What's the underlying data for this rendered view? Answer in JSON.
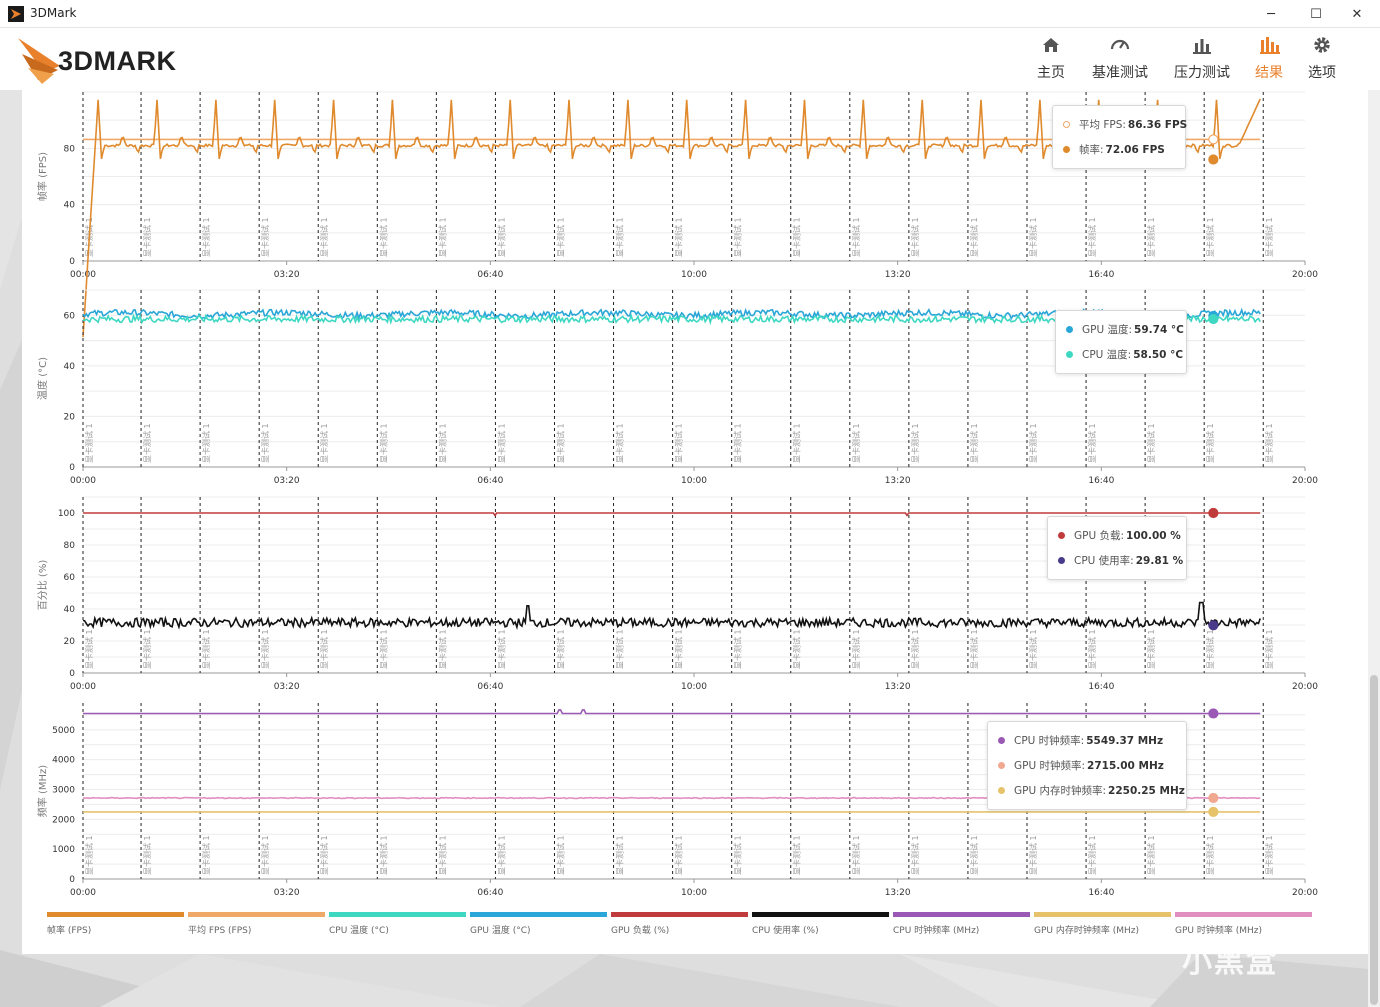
{
  "window": {
    "title": "3DMark",
    "minimize_glyph": "─",
    "maximize_glyph": "☐",
    "close_glyph": "✕"
  },
  "header": {
    "logo_text": "3DMARK",
    "nav": [
      {
        "label": "主页",
        "icon": "home-icon"
      },
      {
        "label": "基准测试",
        "icon": "speedometer-icon"
      },
      {
        "label": "压力测试",
        "icon": "bar-chart-icon"
      },
      {
        "label": "结果",
        "icon": "results-icon",
        "active": true
      },
      {
        "label": "选项",
        "icon": "gear-icon"
      }
    ],
    "accent_color": "#e8802c"
  },
  "x_axis_ticks": [
    "00:00",
    "03:20",
    "06:40",
    "10:00",
    "13:20",
    "16:40",
    "20:00"
  ],
  "marker_label": "显卡测试 1",
  "chart_data": [
    {
      "type": "line",
      "ylabel": "帧率 (FPS)",
      "yticks": [
        0,
        40,
        80
      ],
      "ylim": [
        0,
        120
      ],
      "xlim_seconds": [
        0,
        1200
      ],
      "series": [
        {
          "name": "平均 FPS",
          "color": "#f0a868",
          "pattern": "flat",
          "value": 86.36
        },
        {
          "name": "帧率",
          "color": "#e08a2e",
          "pattern": "spiky_periodic",
          "base": 82,
          "low": 72,
          "high": 116,
          "end_value": 115
        }
      ],
      "tooltip": [
        {
          "label": "平均 FPS:",
          "value": "86.36 FPS",
          "color": "#f0a868",
          "hollow": true
        },
        {
          "label": "帧率:",
          "value": "72.06 FPS",
          "color": "#e08a2e",
          "hollow": false
        }
      ]
    },
    {
      "type": "line",
      "ylabel": "温度 (°C)",
      "yticks": [
        0,
        20,
        40,
        60
      ],
      "ylim": [
        0,
        70
      ],
      "xlim_seconds": [
        0,
        1200
      ],
      "series": [
        {
          "name": "GPU 温度",
          "color": "#2aa7d8",
          "pattern": "noisy",
          "base": 60.5,
          "amp": 1.2
        },
        {
          "name": "CPU 温度",
          "color": "#3ed8c2",
          "pattern": "noisy",
          "base": 58.5,
          "amp": 1.3
        }
      ],
      "tooltip": [
        {
          "label": "GPU 温度:",
          "value": "59.74 °C",
          "color": "#2aa7d8"
        },
        {
          "label": "CPU 温度:",
          "value": "58.50 °C",
          "color": "#3ed8c2"
        }
      ]
    },
    {
      "type": "line",
      "ylabel": "百分比 (%)",
      "yticks": [
        0,
        20,
        40,
        60,
        80,
        100
      ],
      "ylim": [
        0,
        110
      ],
      "xlim_seconds": [
        0,
        1200
      ],
      "series": [
        {
          "name": "GPU 负载",
          "color": "#c03b3b",
          "pattern": "flat_dips",
          "base": 100
        },
        {
          "name": "CPU 使用率",
          "color": "#111111",
          "pattern": "noisy",
          "base": 31.5,
          "amp": 2.8
        }
      ],
      "tooltip": [
        {
          "label": "GPU 负载:",
          "value": "100.00 %",
          "color": "#c03b3b"
        },
        {
          "label": "CPU 使用率:",
          "value": "29.81 %",
          "color": "#4a3a8a"
        }
      ]
    },
    {
      "type": "line",
      "ylabel": "频率 (MHz)",
      "yticks": [
        0,
        1000,
        2000,
        3000,
        4000,
        5000
      ],
      "ylim": [
        0,
        5900
      ],
      "xlim_seconds": [
        0,
        1200
      ],
      "series": [
        {
          "name": "CPU 时钟频率",
          "color": "#9b59b6",
          "pattern": "flat",
          "value": 5549.37
        },
        {
          "name": "GPU 时钟频率",
          "color": "#e08fc0",
          "pattern": "noisy",
          "base": 2715,
          "amp": 15
        },
        {
          "name": "GPU 内存时钟频率",
          "color": "#e6c36a",
          "pattern": "flat",
          "value": 2250.25
        }
      ],
      "tooltip": [
        {
          "label": "CPU 时钟频率:",
          "value": "5549.37 MHz",
          "color": "#9b59b6"
        },
        {
          "label": "GPU 时钟频率:",
          "value": "2715.00 MHz",
          "color": "#f0a890"
        },
        {
          "label": "GPU 内存时钟频率:",
          "value": "2250.25 MHz",
          "color": "#e6c36a"
        }
      ]
    }
  ],
  "legend": [
    {
      "label": "帧率 (FPS)",
      "color": "#e08a2e"
    },
    {
      "label": "平均 FPS (FPS)",
      "color": "#f0a868"
    },
    {
      "label": "CPU 温度 (°C)",
      "color": "#3ed8c2"
    },
    {
      "label": "GPU 温度 (°C)",
      "color": "#2aa7d8"
    },
    {
      "label": "GPU 负载 (%)",
      "color": "#c03b3b"
    },
    {
      "label": "CPU 使用率 (%)",
      "color": "#111111"
    },
    {
      "label": "CPU 时钟频率 (MHz)",
      "color": "#9b59b6"
    },
    {
      "label": "GPU 内存时钟频率 (MHz)",
      "color": "#e6c36a"
    },
    {
      "label": "GPU 时钟频率 (MHz)",
      "color": "#e08fc0"
    }
  ],
  "watermark": "小黑盒"
}
